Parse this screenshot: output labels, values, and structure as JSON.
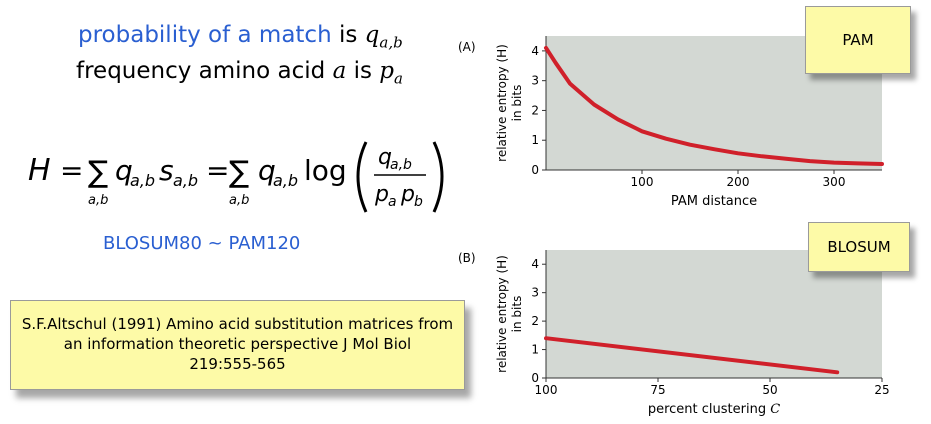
{
  "left": {
    "match_prefix": "probability of a match",
    "match_is": "is",
    "match_var": "q",
    "match_sub": "a,b",
    "freq_text": "frequency amino acid",
    "freq_var": "a",
    "freq_is": "is",
    "freq_p": "p",
    "freq_sub": "a",
    "equivalence": "BLOSUM80 ~ PAM120",
    "citation_line1": "S.F.Altschul (1991) Amino acid substitution matrices from",
    "citation_line2": "an information theoretic perspective J Mol Biol",
    "citation_line3": "219:555-565"
  },
  "formula": {
    "H": "H",
    "eq": "=",
    "sigma": "∑",
    "sum_sub": "a,b",
    "q": "q",
    "s": "s",
    "ab": "a,b",
    "log": "log",
    "p": "p",
    "a": "a",
    "b": "b"
  },
  "tags": {
    "pam": "PAM",
    "blosum": "BLOSUM"
  },
  "colors": {
    "accent_blue": "#2a5fd1",
    "curve_red": "#d0202a",
    "plot_bg": "#d3d8d3",
    "note_yellow": "#fdfaa7"
  },
  "chart_data": [
    {
      "type": "line",
      "panel": "(A)",
      "xlabel": "PAM distance",
      "ylabel": "relative entropy (H) in bits",
      "xlim": [
        0,
        350
      ],
      "ylim": [
        0,
        4.5
      ],
      "xticks": [
        100,
        200,
        300
      ],
      "yticks": [
        0,
        1,
        2,
        3,
        4
      ],
      "x": [
        0,
        10,
        25,
        50,
        75,
        100,
        125,
        150,
        175,
        200,
        225,
        250,
        275,
        300,
        325,
        350
      ],
      "y": [
        4.1,
        3.6,
        2.9,
        2.2,
        1.7,
        1.3,
        1.05,
        0.85,
        0.7,
        0.56,
        0.46,
        0.38,
        0.3,
        0.25,
        0.22,
        0.2
      ],
      "grid": false
    },
    {
      "type": "line",
      "panel": "(B)",
      "xlabel": "percent clustering",
      "xlabel_var": "C",
      "ylabel": "relative entropy (H) in bits",
      "xlim": [
        100,
        25
      ],
      "ylim": [
        0,
        4.5
      ],
      "xticks": [
        100,
        75,
        50,
        25
      ],
      "yticks": [
        0,
        1,
        2,
        3,
        4
      ],
      "x": [
        100,
        35
      ],
      "y": [
        1.4,
        0.2
      ],
      "grid": false
    }
  ]
}
